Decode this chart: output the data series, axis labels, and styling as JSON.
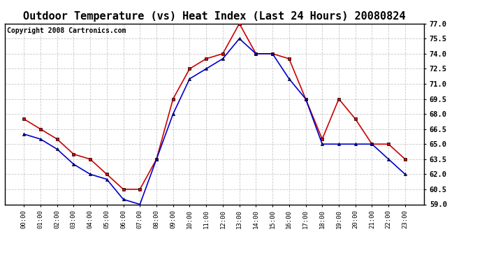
{
  "title": "Outdoor Temperature (vs) Heat Index (Last 24 Hours) 20080824",
  "copyright": "Copyright 2008 Cartronics.com",
  "x_labels": [
    "00:00",
    "01:00",
    "02:00",
    "03:00",
    "04:00",
    "05:00",
    "06:00",
    "07:00",
    "08:00",
    "09:00",
    "10:00",
    "11:00",
    "12:00",
    "13:00",
    "14:00",
    "15:00",
    "16:00",
    "17:00",
    "18:00",
    "19:00",
    "20:00",
    "21:00",
    "22:00",
    "23:00"
  ],
  "heat_index": [
    67.5,
    66.5,
    65.5,
    64.0,
    63.5,
    62.0,
    60.5,
    60.5,
    63.5,
    69.5,
    72.5,
    73.5,
    74.0,
    77.0,
    74.0,
    74.0,
    73.5,
    69.5,
    65.5,
    69.5,
    67.5,
    65.0,
    65.0,
    63.5
  ],
  "outdoor_temp": [
    66.0,
    65.5,
    64.5,
    63.0,
    62.0,
    61.5,
    59.5,
    59.0,
    63.5,
    68.0,
    71.5,
    72.5,
    73.5,
    75.5,
    74.0,
    74.0,
    71.5,
    69.5,
    65.0,
    65.0,
    65.0,
    65.0,
    63.5,
    62.0
  ],
  "heat_index_color": "#cc0000",
  "outdoor_temp_color": "#0000cc",
  "ylim_min": 59.0,
  "ylim_max": 77.0,
  "yticks": [
    59.0,
    60.5,
    62.0,
    63.5,
    65.0,
    66.5,
    68.0,
    69.5,
    71.0,
    72.5,
    74.0,
    75.5,
    77.0
  ],
  "background_color": "#ffffff",
  "grid_color": "#bbbbbb",
  "title_fontsize": 11,
  "copyright_fontsize": 7
}
